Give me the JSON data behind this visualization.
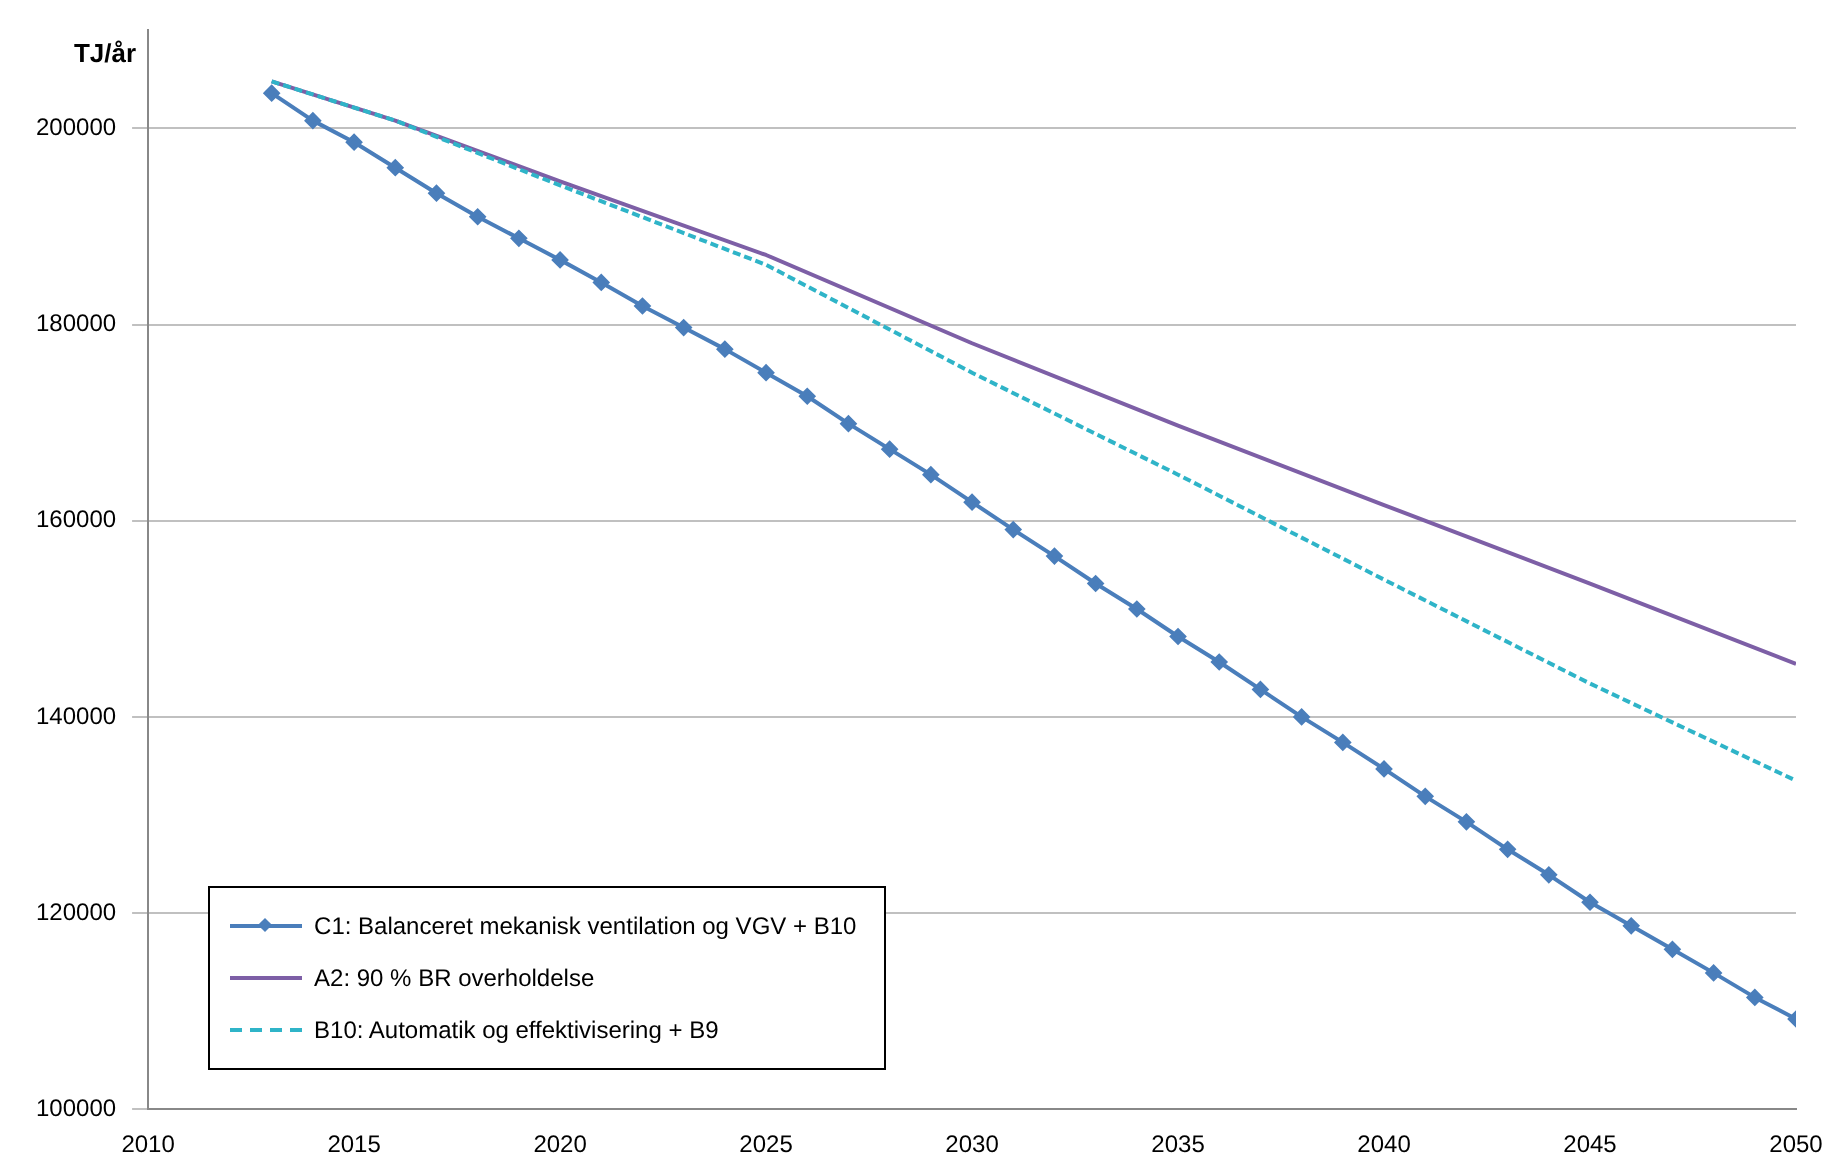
{
  "chart_data": {
    "type": "line",
    "ylabel": "TJ/år",
    "xlim": [
      2010,
      2050
    ],
    "xticks": [
      2010,
      2015,
      2020,
      2025,
      2030,
      2035,
      2040,
      2045,
      2050
    ],
    "ylim": [
      100000,
      210000
    ],
    "yticks": [
      100000,
      120000,
      140000,
      160000,
      180000,
      200000
    ],
    "grid": "y",
    "legend": "bottom left",
    "series": [
      {
        "name": "C1: Balanceret mekanisk ventilation og VGV + B10",
        "color": "#4a7ebb",
        "marker": "diamond",
        "line_style": "solid",
        "x": [
          2013,
          2014,
          2015,
          2016,
          2017,
          2018,
          2019,
          2020,
          2021,
          2022,
          2023,
          2024,
          2025,
          2026,
          2027,
          2028,
          2029,
          2030,
          2031,
          2032,
          2033,
          2034,
          2035,
          2036,
          2037,
          2038,
          2039,
          2040,
          2041,
          2042,
          2043,
          2044,
          2045,
          2046,
          2047,
          2048,
          2049,
          2050
        ],
        "values": [
          203600,
          200800,
          198600,
          196000,
          193400,
          191000,
          188800,
          186600,
          184300,
          181900,
          179700,
          177500,
          175100,
          172700,
          169900,
          167300,
          164700,
          161900,
          159100,
          156400,
          153600,
          151000,
          148200,
          145600,
          142800,
          140000,
          137400,
          134700,
          131900,
          129300,
          126500,
          123900,
          121100,
          118700,
          116300,
          113900,
          111400,
          109200
        ]
      },
      {
        "name": "A2: 90 % BR overholdelse",
        "color": "#7d5fa6",
        "marker": "none",
        "line_style": "solid",
        "x": [
          2013,
          2016,
          2020,
          2025,
          2030,
          2035,
          2040,
          2045,
          2050
        ],
        "values": [
          204800,
          200800,
          194600,
          187100,
          178100,
          169700,
          161600,
          153600,
          145400
        ]
      },
      {
        "name": "B10: Automatik og effektivisering + B9",
        "color": "#2fb4c8",
        "marker": "none",
        "line_style": "dashed",
        "x": [
          2013,
          2016,
          2020,
          2025,
          2030,
          2035,
          2040,
          2045,
          2050
        ],
        "values": [
          204800,
          200800,
          194200,
          186100,
          175100,
          164700,
          154000,
          143400,
          133500
        ]
      }
    ]
  }
}
